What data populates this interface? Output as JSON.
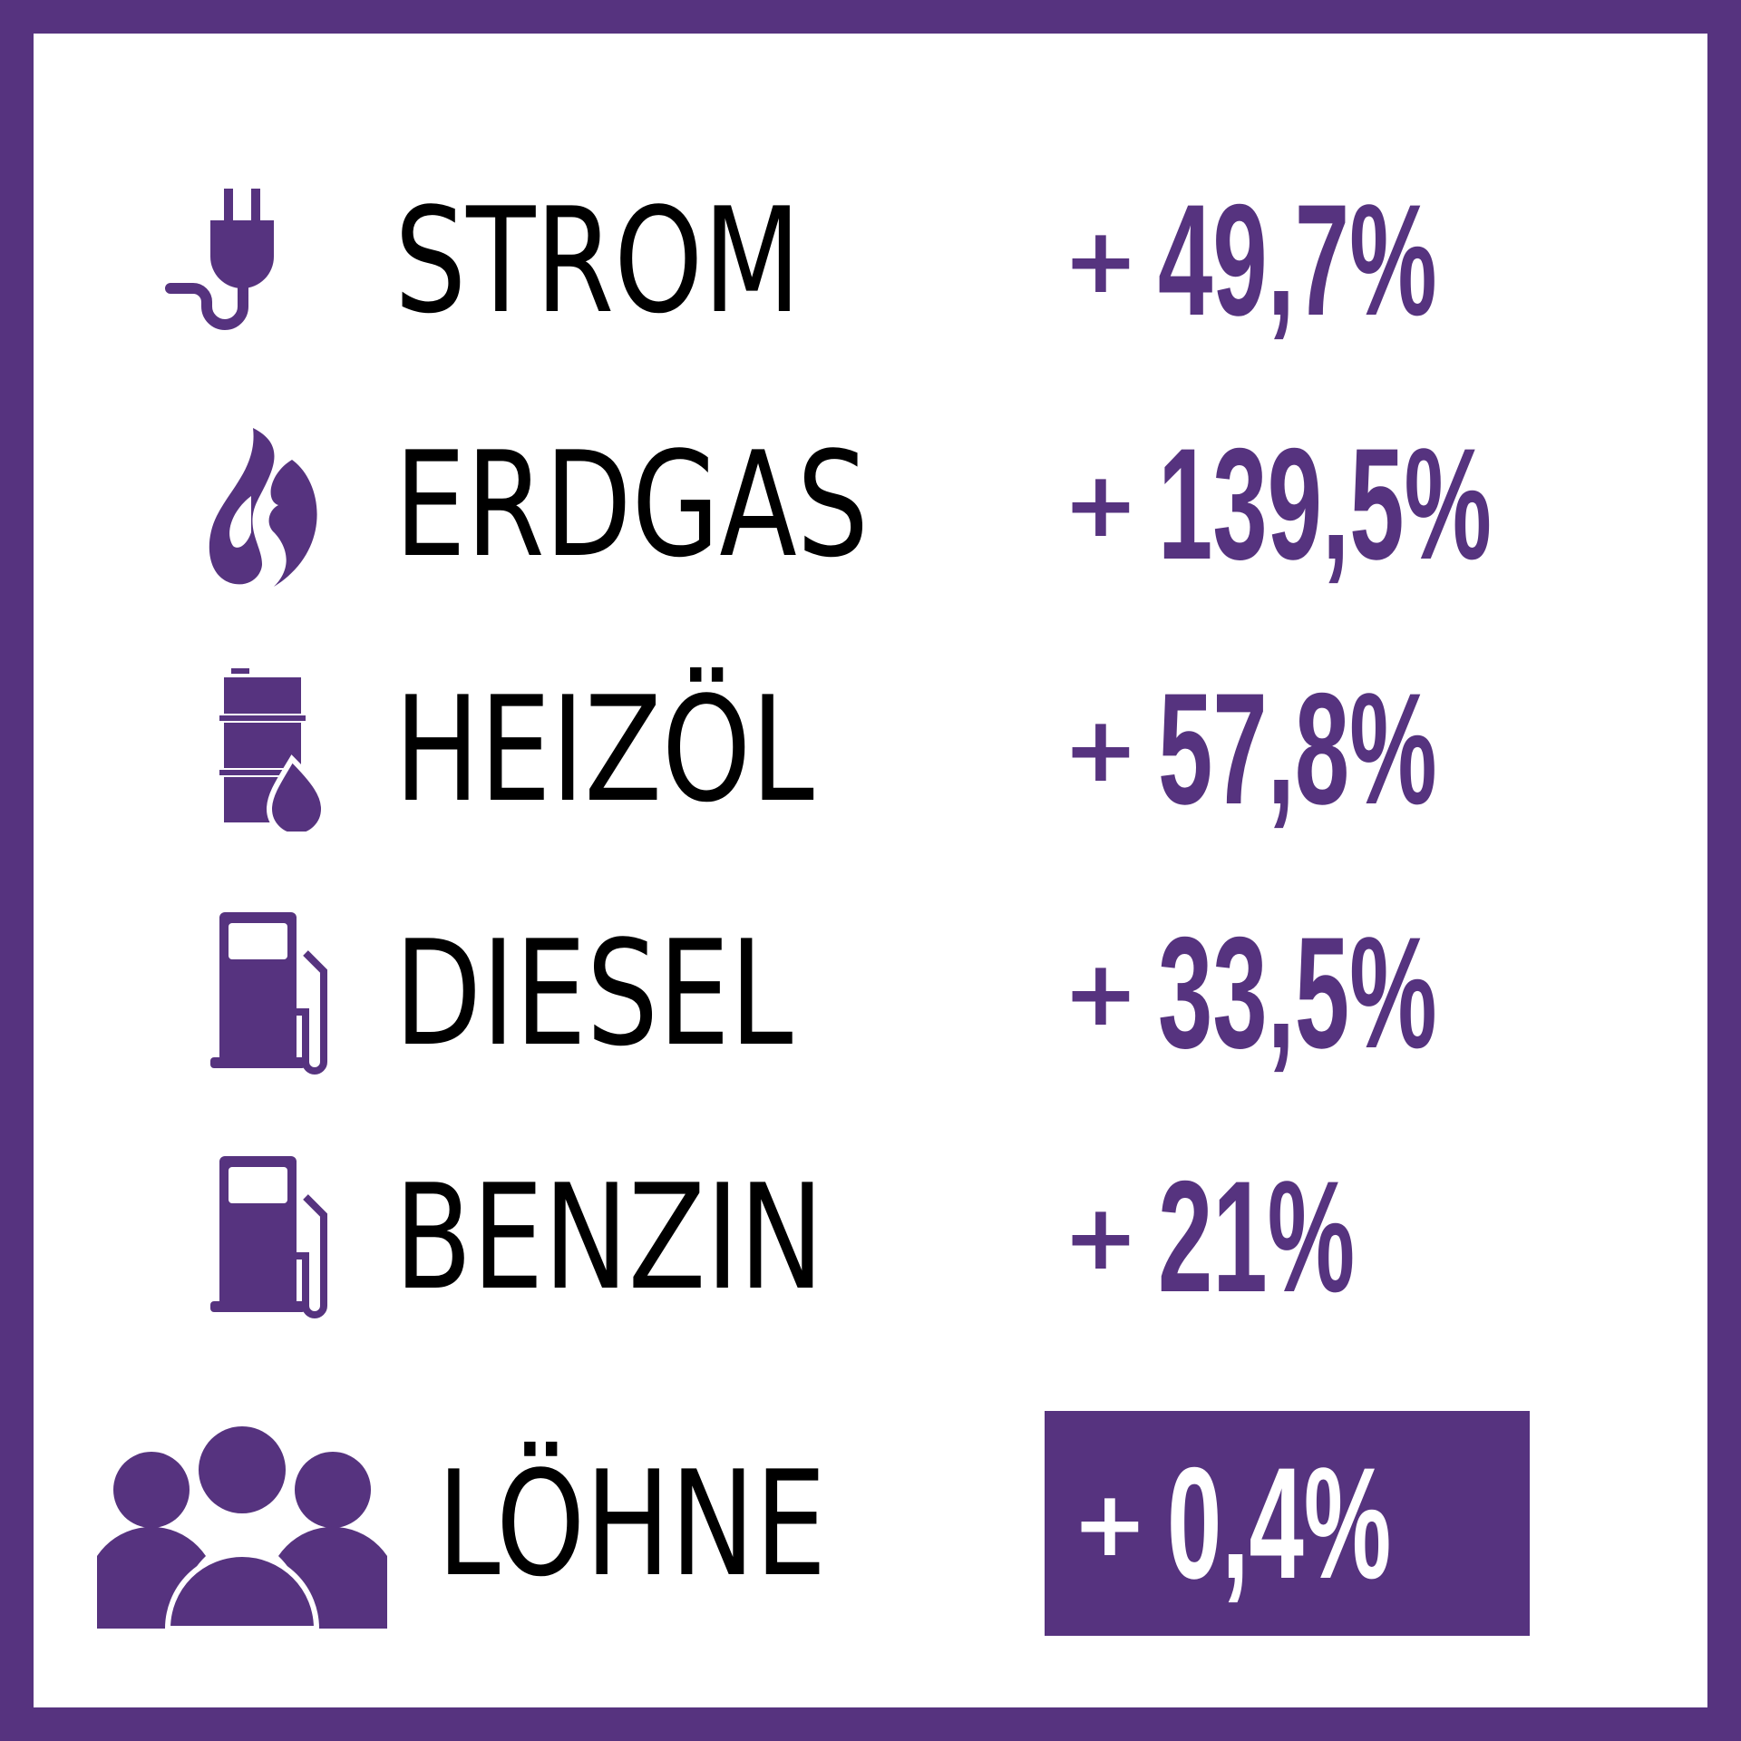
{
  "rows": [
    {
      "label": "STROM",
      "sign": "+",
      "value": "49,7%"
    },
    {
      "label": "ERDGAS",
      "sign": "+",
      "value": "139,5%"
    },
    {
      "label": "HEIZÖL",
      "sign": "+",
      "value": "57,8%"
    },
    {
      "label": "DIESEL",
      "sign": "+",
      "value": "33,5%"
    },
    {
      "label": "BENZIN",
      "sign": "+",
      "value": "21%"
    },
    {
      "label": "LÖHNE",
      "sign": "+",
      "value": "0,4%"
    }
  ]
}
